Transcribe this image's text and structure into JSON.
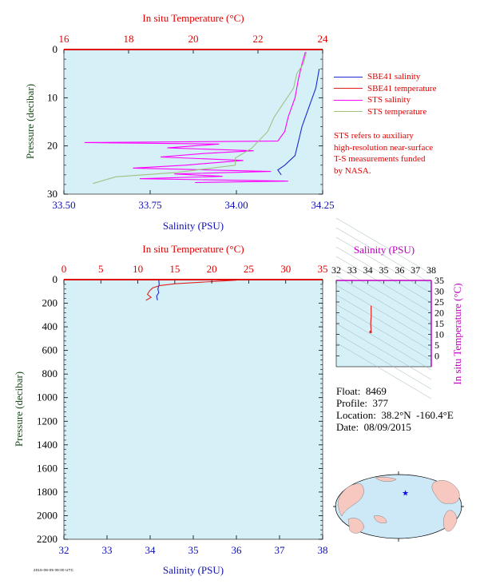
{
  "colors": {
    "salinity_axis": "#1010b0",
    "temperature_axis": "#e00000",
    "pressure_axis": "#1a4a1a",
    "inset_axis": "#c000c0",
    "plot_bg": "#d6f0f8",
    "sbe_salinity": "#1a2ad0",
    "sbe_temperature": "#e02020",
    "sts_salinity": "#ff00ff",
    "sts_temperature": "#a0c080"
  },
  "legend": {
    "items": [
      {
        "label": "SBE41 salinity",
        "color": "#1a2ad0"
      },
      {
        "label": "SBE41 temperature",
        "color": "#e02020"
      },
      {
        "label": "STS salinity",
        "color": "#ff00ff"
      },
      {
        "label": "STS temperature",
        "color": "#a0c080"
      }
    ]
  },
  "note": {
    "lines": [
      "STS refers to auxiliary",
      "high-resolution near-surface",
      "T-S measurements funded",
      "by NASA."
    ]
  },
  "float_info": {
    "float": "Float:  8469",
    "profile": "Profile:  377",
    "location": "Location:  38.2°N  -160.4°E",
    "date": "Date:  08/09/2015"
  },
  "credit": "2015-08-09 09:00 UTC",
  "chart_data": [
    {
      "type": "line",
      "name": "near-surface-profile",
      "x_bottom": {
        "label": "Salinity (PSU)",
        "range": [
          33.5,
          34.25
        ],
        "ticks": [
          "33.50",
          "33.75",
          "34.00",
          "34.25"
        ]
      },
      "x_top": {
        "label": "In situ Temperature (°C)",
        "range": [
          16,
          24
        ],
        "ticks": [
          "16",
          "18",
          "20",
          "22",
          "24"
        ]
      },
      "y": {
        "label": "Pressure (decibar)",
        "range": [
          0,
          30
        ],
        "inverted": true,
        "ticks": [
          "0",
          "10",
          "20",
          "30"
        ]
      },
      "series": [
        {
          "name": "SBE41 salinity",
          "axis": "bottom",
          "x": [
            34.24,
            34.23,
            34.21,
            34.19,
            34.18,
            34.17,
            34.14,
            34.12,
            34.13
          ],
          "y": [
            4,
            8,
            12,
            16,
            19,
            22,
            24,
            25,
            26
          ]
        },
        {
          "name": "SBE41 temperature",
          "axis": "top",
          "x": [],
          "y": []
        },
        {
          "name": "STS salinity",
          "axis": "bottom",
          "x": [
            34.2,
            34.19,
            34.18,
            34.17,
            34.15,
            34.14,
            34.12,
            33.56,
            33.95,
            33.8,
            34.05,
            33.9,
            33.78,
            34.02,
            33.85,
            33.7,
            34.1,
            33.82,
            33.96,
            33.72,
            34.15,
            33.88
          ],
          "y": [
            0.5,
            3,
            6,
            10,
            14,
            17,
            19,
            19.3,
            19.6,
            20.4,
            21,
            21.6,
            22.3,
            23,
            24,
            24.6,
            25.3,
            25.8,
            26.3,
            26.8,
            27.3,
            27.6
          ]
        },
        {
          "name": "STS temperature",
          "axis": "top",
          "x": [
            23.5,
            23.4,
            23.2,
            23.1,
            22.8,
            22.5,
            22.3,
            21.8,
            21.3,
            21.3,
            19.5,
            17.6,
            16.9
          ],
          "y": [
            0.5,
            3,
            5,
            8,
            11,
            14,
            17,
            20.5,
            22.5,
            24,
            25.5,
            26.4,
            27.8
          ]
        }
      ]
    },
    {
      "type": "line",
      "name": "full-profile",
      "x_bottom": {
        "label": "Salinity (PSU)",
        "range": [
          32,
          38
        ],
        "ticks": [
          "32",
          "33",
          "34",
          "35",
          "36",
          "37",
          "38"
        ]
      },
      "x_top": {
        "label": "In situ Temperature (°C)",
        "range": [
          0,
          35
        ],
        "ticks": [
          "0",
          "5",
          "10",
          "15",
          "20",
          "25",
          "30",
          "35"
        ]
      },
      "y": {
        "label": "Pressure (decibar)",
        "range": [
          0,
          2200
        ],
        "inverted": true,
        "ticks": [
          "0",
          "200",
          "400",
          "600",
          "800",
          "1000",
          "1200",
          "1400",
          "1600",
          "1800",
          "2000",
          "2200"
        ]
      },
      "series": [
        {
          "name": "SBE41 salinity",
          "axis": "bottom",
          "x": [
            34.2,
            34.21,
            34.18,
            34.2,
            34.15,
            34.17
          ],
          "y": [
            5,
            40,
            80,
            110,
            140,
            175
          ]
        },
        {
          "name": "SBE41 temperature",
          "axis": "top",
          "x": [
            23.3,
            19.0,
            15.0,
            13.0,
            12.0,
            11.6,
            11.3,
            11.8,
            11.1
          ],
          "y": [
            5,
            20,
            35,
            50,
            70,
            95,
            125,
            150,
            175
          ]
        }
      ]
    },
    {
      "type": "line",
      "name": "t-s-diagram",
      "x_top": {
        "label": "Salinity (PSU)",
        "range": [
          32,
          38
        ],
        "ticks": [
          "32",
          "33",
          "34",
          "35",
          "36",
          "37",
          "38"
        ]
      },
      "y_right": {
        "label": "In situ Temperature (°C)",
        "range": [
          -5,
          35
        ],
        "ticks": [
          "0",
          "5",
          "10",
          "15",
          "20",
          "25",
          "30",
          "35"
        ]
      },
      "series": [
        {
          "name": "T-S profile",
          "x": [
            34.2,
            34.21,
            34.18,
            34.2,
            34.17
          ],
          "y": [
            23.3,
            19.0,
            15.0,
            12.0,
            11.1
          ]
        }
      ]
    },
    {
      "type": "map",
      "name": "location-map",
      "marker": {
        "lat": 38.2,
        "lon": -160.4
      }
    }
  ]
}
